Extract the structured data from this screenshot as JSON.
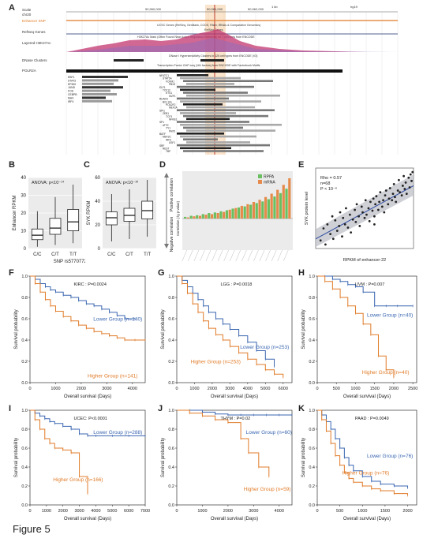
{
  "figure": {
    "caption": "Figure 5",
    "panel_letters": [
      "A",
      "B",
      "C",
      "D",
      "E",
      "F",
      "G",
      "H",
      "I",
      "J",
      "K"
    ]
  },
  "panelA": {
    "track_labels": [
      "Scale",
      "chr20",
      "Enhancer SNP",
      "RefSeq Genes",
      "Layered H3K27Ac",
      "DNase Clusters",
      "POLR2A"
    ],
    "header_texts": [
      "50,960,000",
      "50,961,000",
      "50,962,000",
      "1 kb",
      "hg19"
    ],
    "track_titles": [
      "UCSC Genes (RefSeq, GenBank, CCDS, Rfam, tRNAs & Comparative Genomics)",
      "RefSeq Genes",
      "H3K27Ac Mark (Often Found Near Active Regulatory Elements) on 7 cell lines from ENCODE",
      "DNase I Hypersensitivity Clusters in 125 cell types from ENCODE (V3)",
      "Transcription Factor ChIP-seq (161 factors) from ENCODE with Factorbook Motifs"
    ],
    "tf_left": [
      "EBF1",
      "STAT3",
      "EP300",
      "JUND",
      "FOS",
      "CEBPB",
      "MAX",
      "IRF4"
    ],
    "tf_mid": [
      "NFATC1",
      "STAT5A",
      "FOXM1",
      "PBX3",
      "ELF1",
      "TCF12",
      "ETS1",
      "IKZF1",
      "RUNX3",
      "BCL11A",
      "POU2F2",
      "MEF2A",
      "SPI1",
      "ZEB1",
      "TCF3",
      "NFKB1",
      "SP1",
      "ATF2",
      "YY1",
      "PAX5",
      "BATF",
      "MEF2C",
      "IRF3",
      "USF1",
      "SRF",
      "REST",
      "TBP"
    ],
    "accent_color": "#e07b28"
  },
  "chart_data": [
    {
      "panel": "B",
      "type": "box",
      "title": "ANOVA: p<10⁻¹⁴",
      "xlabel": "SNP rs5770772 genotype",
      "ylabel": "Enhancer RPKM",
      "categories": [
        "C/C",
        "C/T",
        "T/T"
      ],
      "ylim": [
        0,
        40
      ],
      "yticks": [
        "0",
        "10",
        "20",
        "30",
        "40"
      ],
      "boxes": [
        {
          "min": 1,
          "q1": 5,
          "median": 7.5,
          "q3": 11,
          "max": 21
        },
        {
          "min": 2,
          "q1": 8,
          "median": 11.5,
          "q3": 17,
          "max": 29
        },
        {
          "min": 3,
          "q1": 10,
          "median": 15,
          "q3": 22,
          "max": 36
        }
      ]
    },
    {
      "panel": "C",
      "type": "box",
      "title": "ANOVA: p<10⁻¹⁰",
      "xlabel": "",
      "ylabel": "SYK RPKM",
      "categories": [
        "C/C",
        "C/T",
        "T/T"
      ],
      "ylim": [
        0,
        60
      ],
      "yticks": [
        "0",
        "20",
        "40",
        "60"
      ],
      "boxes": [
        {
          "min": 6,
          "q1": 20,
          "median": 26,
          "q3": 31,
          "max": 46
        },
        {
          "min": 8,
          "q1": 23,
          "median": 28,
          "q3": 34,
          "max": 50
        },
        {
          "min": 10,
          "q1": 25,
          "median": 32,
          "q3": 40,
          "max": 58
        }
      ]
    },
    {
      "panel": "D",
      "type": "bar",
      "xlabel": "",
      "ylabel": "Correlation (-lg p-value)",
      "side_labels": [
        "Positive correlation",
        "Negative correlation"
      ],
      "legend": [
        "RPPA",
        "mRNA"
      ],
      "colors": {
        "RPPA": "#6abf5f",
        "mRNA": "#e58a4a"
      },
      "series": [
        {
          "name": "RPPA",
          "values": [
            0.3,
            0.5,
            0.6,
            0.8,
            1.0,
            1.1,
            1.3,
            1.5,
            1.8,
            2.0,
            2.2,
            2.5,
            2.8,
            3.1,
            3.5,
            4.0,
            4.6,
            5.4
          ]
        },
        {
          "name": "mRNA",
          "values": [
            0.2,
            0.4,
            0.5,
            0.7,
            0.8,
            1.0,
            1.2,
            1.6,
            1.9,
            2.3,
            2.6,
            3.0,
            3.4,
            3.9,
            4.5,
            5.2,
            6.1,
            7.3
          ]
        }
      ]
    },
    {
      "panel": "E",
      "type": "scatter",
      "xlabel": "RPKM of enhancer-22",
      "ylabel": "SYK protein level",
      "annotations": [
        "Rho = 0.57",
        "n=68",
        "P < 10⁻⁶"
      ],
      "regression": {
        "x": [
          0,
          1
        ],
        "y": [
          0.12,
          0.78
        ]
      },
      "x": [
        0.05,
        0.08,
        0.1,
        0.12,
        0.15,
        0.17,
        0.18,
        0.2,
        0.22,
        0.24,
        0.25,
        0.27,
        0.28,
        0.3,
        0.31,
        0.33,
        0.35,
        0.36,
        0.38,
        0.4,
        0.41,
        0.42,
        0.44,
        0.45,
        0.47,
        0.48,
        0.5,
        0.51,
        0.52,
        0.54,
        0.55,
        0.56,
        0.58,
        0.59,
        0.6,
        0.61,
        0.62,
        0.64,
        0.65,
        0.66,
        0.68,
        0.69,
        0.7,
        0.71,
        0.72,
        0.74,
        0.75,
        0.76,
        0.78,
        0.79,
        0.8,
        0.81,
        0.82,
        0.84,
        0.85,
        0.86,
        0.88,
        0.89,
        0.9,
        0.91,
        0.92,
        0.93,
        0.95,
        0.96,
        0.97,
        0.98,
        0.99,
        0.6
      ],
      "y": [
        0.1,
        0.25,
        0.05,
        0.3,
        0.18,
        0.4,
        0.12,
        0.35,
        0.22,
        0.28,
        0.45,
        0.15,
        0.38,
        0.3,
        0.5,
        0.26,
        0.42,
        0.2,
        0.36,
        0.48,
        0.33,
        0.55,
        0.4,
        0.28,
        0.52,
        0.45,
        0.38,
        0.6,
        0.42,
        0.5,
        0.34,
        0.58,
        0.47,
        0.62,
        0.4,
        0.55,
        0.65,
        0.48,
        0.58,
        0.7,
        0.52,
        0.6,
        0.45,
        0.66,
        0.72,
        0.55,
        0.62,
        0.75,
        0.6,
        0.68,
        0.8,
        0.64,
        0.58,
        0.72,
        0.85,
        0.7,
        0.66,
        0.78,
        0.9,
        0.74,
        0.82,
        0.68,
        0.88,
        0.76,
        0.92,
        0.84,
        0.95,
        0.3
      ]
    },
    {
      "panel": "F",
      "type": "line",
      "title": "KIRC : P=0.0024",
      "xlabel": "Overall survival (Days)",
      "ylabel": "Survival probability",
      "xlim": [
        0,
        4500
      ],
      "ylim": [
        0,
        1
      ],
      "xticks": [
        "0",
        "1000",
        "2000",
        "3000",
        "4000"
      ],
      "yticks": [
        "0.0",
        "0.2",
        "0.4",
        "0.6",
        "0.8",
        "1.0"
      ],
      "series": [
        {
          "name": "Lower Group (n=140)",
          "color": "#3a66b0",
          "x": [
            0,
            200,
            400,
            600,
            800,
            1000,
            1300,
            1600,
            1900,
            2200,
            2500,
            2800,
            3100,
            3400,
            3700,
            4100
          ],
          "y": [
            1,
            0.97,
            0.93,
            0.9,
            0.87,
            0.85,
            0.82,
            0.8,
            0.77,
            0.74,
            0.72,
            0.69,
            0.66,
            0.63,
            0.6,
            0.6
          ]
        },
        {
          "name": "Higher Group (n=141)",
          "color": "#e07b28",
          "x": [
            0,
            200,
            400,
            600,
            800,
            1000,
            1300,
            1600,
            1900,
            2200,
            2500,
            2800,
            3100,
            3400,
            3700,
            4100,
            4500
          ],
          "y": [
            1,
            0.93,
            0.85,
            0.78,
            0.72,
            0.67,
            0.62,
            0.58,
            0.54,
            0.51,
            0.48,
            0.46,
            0.44,
            0.42,
            0.4,
            0.4,
            0.4
          ]
        }
      ]
    },
    {
      "panel": "G",
      "type": "line",
      "title": "LGG : P=0.0018",
      "xlabel": "Overall survival (Days)",
      "ylabel": "Survival probability",
      "xlim": [
        0,
        6500
      ],
      "ylim": [
        0,
        1
      ],
      "xticks": [
        "0",
        "1000",
        "2000",
        "3000",
        "4000",
        "5000",
        "6000"
      ],
      "yticks": [
        "0.0",
        "0.2",
        "0.4",
        "0.6",
        "0.8",
        "1.0"
      ],
      "series": [
        {
          "name": "Lower Group (n=253)",
          "color": "#3a66b0",
          "x": [
            0,
            300,
            600,
            900,
            1200,
            1500,
            1800,
            2200,
            2600,
            3000,
            3500,
            4000,
            4500,
            5000,
            5500
          ],
          "y": [
            1,
            0.96,
            0.9,
            0.84,
            0.78,
            0.72,
            0.66,
            0.6,
            0.55,
            0.5,
            0.44,
            0.38,
            0.3,
            0.22,
            0.15
          ]
        },
        {
          "name": "Higher Group (n=253)",
          "color": "#e07b28",
          "x": [
            0,
            300,
            600,
            900,
            1200,
            1500,
            1800,
            2200,
            2600,
            3000,
            3500,
            4000,
            4500,
            5000,
            5500,
            6000
          ],
          "y": [
            1,
            0.93,
            0.84,
            0.74,
            0.66,
            0.58,
            0.51,
            0.45,
            0.4,
            0.34,
            0.28,
            0.22,
            0.17,
            0.12,
            0.08,
            0.05
          ]
        }
      ]
    },
    {
      "panel": "H",
      "type": "line",
      "title": "UVM : P=0.007",
      "xlabel": "Overall survival (Days)",
      "ylabel": "Survival probability",
      "xlim": [
        0,
        2600
      ],
      "ylim": [
        0,
        1
      ],
      "xticks": [
        "0",
        "500",
        "1000",
        "1500",
        "2000",
        "2500"
      ],
      "yticks": [
        "0.0",
        "0.2",
        "0.4",
        "0.6",
        "0.8",
        "1.0"
      ],
      "series": [
        {
          "name": "Lower Group (n=40)",
          "color": "#3a66b0",
          "x": [
            0,
            200,
            400,
            600,
            800,
            1000,
            1200,
            1500,
            1800,
            2100,
            2500
          ],
          "y": [
            1,
            1,
            0.97,
            0.95,
            0.92,
            0.9,
            0.85,
            0.72,
            0.72,
            0.72,
            0.72
          ]
        },
        {
          "name": "Higher Group (n=40)",
          "color": "#e07b28",
          "x": [
            0,
            200,
            400,
            600,
            800,
            1000,
            1200,
            1400,
            1600,
            1800,
            2000
          ],
          "y": [
            1,
            0.95,
            0.88,
            0.8,
            0.72,
            0.65,
            0.55,
            0.45,
            0.25,
            0.12,
            0.05
          ]
        }
      ]
    },
    {
      "panel": "I",
      "type": "line",
      "title": "UCEC: P<0.0001",
      "xlabel": "Overall survival (Days)",
      "ylabel": "Survival probability",
      "xlim": [
        0,
        7000
      ],
      "ylim": [
        0,
        1
      ],
      "xticks": [
        "0",
        "1000",
        "2000",
        "3000",
        "4000",
        "5000",
        "6000",
        "7000"
      ],
      "yticks": [
        "0.0",
        "0.2",
        "0.4",
        "0.6",
        "0.8",
        "1.0"
      ],
      "series": [
        {
          "name": "Lower Group (n=288)",
          "color": "#3a66b0",
          "x": [
            0,
            300,
            600,
            900,
            1200,
            1500,
            2000,
            2500,
            3000,
            3500,
            4000,
            5000,
            6000,
            7000
          ],
          "y": [
            1,
            0.97,
            0.94,
            0.91,
            0.88,
            0.86,
            0.83,
            0.8,
            0.75,
            0.73,
            0.73,
            0.73,
            0.73,
            0.73
          ]
        },
        {
          "name": "Higher Group (n=166)",
          "color": "#e07b28",
          "x": [
            0,
            300,
            600,
            900,
            1200,
            1500,
            2000,
            2500,
            3000,
            3500
          ],
          "y": [
            1,
            0.9,
            0.8,
            0.7,
            0.65,
            0.6,
            0.58,
            0.55,
            0.3,
            0.12
          ]
        }
      ]
    },
    {
      "panel": "J",
      "type": "line",
      "title": "THYM : P=0.02",
      "xlabel": "Overall survival (Days)",
      "ylabel": "Survival probability",
      "xlim": [
        0,
        4500
      ],
      "ylim": [
        0,
        1
      ],
      "xticks": [
        "0",
        "1000",
        "2000",
        "3000",
        "4000"
      ],
      "yticks": [
        "0.0",
        "0.2",
        "0.4",
        "0.6",
        "0.8",
        "1.0"
      ],
      "series": [
        {
          "name": "Lower Group (n=60)",
          "color": "#3a66b0",
          "x": [
            0,
            500,
            1000,
            1500,
            2000,
            2500,
            3000,
            3500,
            4000,
            4500
          ],
          "y": [
            1,
            1,
            0.98,
            0.96,
            0.95,
            0.95,
            0.95,
            0.95,
            0.95,
            0.95
          ]
        },
        {
          "name": "Higher Group (n=59)",
          "color": "#e07b28",
          "x": [
            0,
            500,
            1000,
            1500,
            2000,
            2500,
            2800,
            3200,
            3600
          ],
          "y": [
            1,
            0.97,
            0.94,
            0.9,
            0.87,
            0.7,
            0.55,
            0.4,
            0.3
          ]
        }
      ]
    },
    {
      "panel": "K",
      "type": "line",
      "title": "PAAD : P=0.0049",
      "xlabel": "Overall survival (Days)",
      "ylabel": "Survival probability",
      "xlim": [
        0,
        2200
      ],
      "ylim": [
        0,
        1
      ],
      "xticks": [
        "0",
        "500",
        "1000",
        "1500",
        "2000"
      ],
      "yticks": [
        "0.0",
        "0.2",
        "0.4",
        "0.6",
        "0.8",
        "1.0"
      ],
      "series": [
        {
          "name": "Lower Group (n=76)",
          "color": "#3a66b0",
          "x": [
            0,
            100,
            200,
            300,
            400,
            500,
            600,
            700,
            800,
            1000,
            1200,
            1400,
            1700,
            2000
          ],
          "y": [
            1,
            0.95,
            0.88,
            0.8,
            0.7,
            0.6,
            0.5,
            0.42,
            0.36,
            0.3,
            0.25,
            0.22,
            0.2,
            0.18
          ]
        },
        {
          "name": "Higher Group (n=76)",
          "color": "#e07b28",
          "x": [
            0,
            100,
            200,
            300,
            400,
            500,
            600,
            700,
            800,
            1000,
            1200,
            1400,
            1700,
            2000
          ],
          "y": [
            1,
            0.9,
            0.78,
            0.65,
            0.52,
            0.42,
            0.34,
            0.28,
            0.24,
            0.2,
            0.17,
            0.15,
            0.12,
            0.1
          ]
        }
      ]
    }
  ]
}
